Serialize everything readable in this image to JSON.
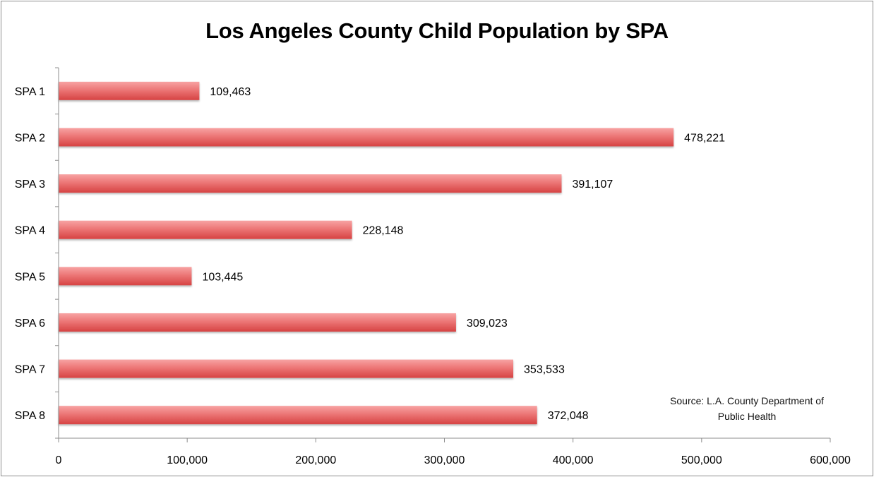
{
  "chart_data": {
    "type": "bar",
    "orientation": "horizontal",
    "title": "Los Angeles County Child Population by SPA",
    "categories": [
      "SPA 1",
      "SPA 2",
      "SPA 3",
      "SPA 4",
      "SPA 5",
      "SPA 6",
      "SPA 7",
      "SPA 8"
    ],
    "values": [
      109463,
      478221,
      391107,
      228148,
      103445,
      309023,
      353533,
      372048
    ],
    "data_labels": [
      "109,463",
      "478,221",
      "391,107",
      "228,148",
      "103,445",
      "309,023",
      "353,533",
      "372,048"
    ],
    "xlabel": "",
    "ylabel": "",
    "xlim": [
      0,
      600000
    ],
    "x_ticks": [
      0,
      100000,
      200000,
      300000,
      400000,
      500000,
      600000
    ],
    "x_tick_labels": [
      "0",
      "100,000",
      "200,000",
      "300,000",
      "400,000",
      "500,000",
      "600,000"
    ],
    "grid": false,
    "legend": null,
    "bar_color": "#e05555",
    "annotation": "Source: L.A. County Department of Public Health"
  },
  "source_note": {
    "line1": "Source: L.A. County Department of",
    "line2": "Public Health"
  }
}
